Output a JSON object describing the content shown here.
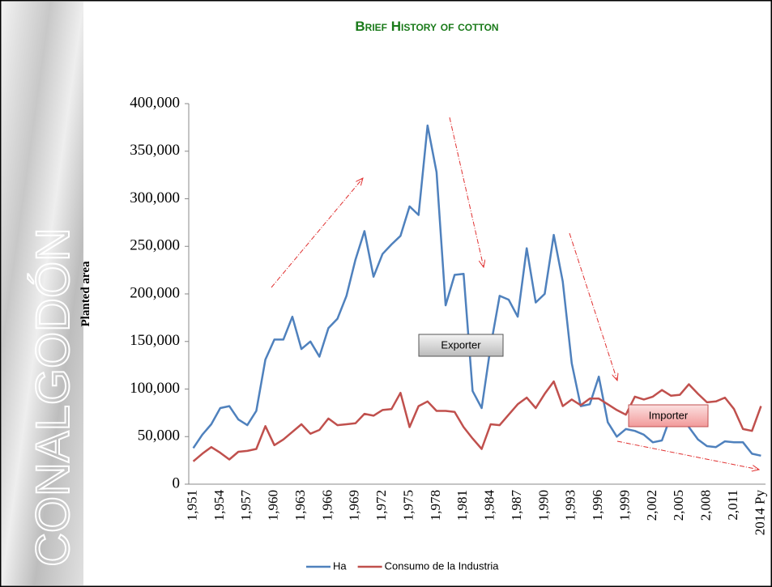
{
  "brand": "CONALGODÓN",
  "chart_data": {
    "type": "line",
    "title": "Brief History of cotton",
    "y_axis_label": "Planted area",
    "categories": [
      "1,951",
      null,
      null,
      "1,954",
      null,
      null,
      "1,957",
      null,
      null,
      "1,960",
      null,
      null,
      "1,963",
      null,
      null,
      "1,966",
      null,
      null,
      "1,969",
      null,
      null,
      "1,972",
      null,
      null,
      "1,975",
      null,
      null,
      "1,978",
      null,
      null,
      "1,981",
      null,
      null,
      "1,984",
      null,
      null,
      "1,987",
      null,
      null,
      "1,990",
      null,
      null,
      "1,993",
      null,
      null,
      "1,996",
      null,
      null,
      "1,999",
      null,
      null,
      "2,002",
      null,
      null,
      "2,005",
      null,
      null,
      "2,008",
      null,
      null,
      "2,011",
      null,
      null,
      "2014 Py"
    ],
    "series": [
      {
        "name": "Ha",
        "color": "#4f81bd",
        "values": [
          38000,
          52000,
          63000,
          80000,
          82000,
          68000,
          62000,
          77000,
          131000,
          152000,
          152000,
          176000,
          142000,
          150000,
          134000,
          164000,
          174000,
          198000,
          236000,
          266000,
          218000,
          242000,
          252000,
          261000,
          292000,
          283000,
          377000,
          328000,
          188000,
          220000,
          221000,
          98000,
          80000,
          145000,
          198000,
          194000,
          176000,
          248000,
          191000,
          200000,
          262000,
          213000,
          127000,
          82000,
          84000,
          113000,
          65000,
          50000,
          58000,
          56000,
          52000,
          44000,
          46000,
          72000,
          78000,
          60000,
          47000,
          40000,
          39000,
          45000,
          44000,
          44000,
          32000,
          30000
        ]
      },
      {
        "name": "Consumo de la Industria",
        "color": "#c0504d",
        "values": [
          24000,
          32000,
          39000,
          33000,
          26000,
          34000,
          35000,
          37000,
          61000,
          41000,
          47000,
          55000,
          63000,
          53000,
          57000,
          69000,
          62000,
          63000,
          64000,
          74000,
          72000,
          78000,
          79000,
          96000,
          60000,
          82000,
          87000,
          77000,
          77000,
          76000,
          60000,
          48000,
          37000,
          63000,
          62000,
          73000,
          84000,
          91000,
          80000,
          95000,
          108000,
          82000,
          89000,
          83000,
          90000,
          90000,
          84000,
          78000,
          73000,
          92000,
          89000,
          92000,
          99000,
          93000,
          94000,
          105000,
          95000,
          86000,
          87000,
          91000,
          79000,
          58000,
          56000,
          82000
        ]
      }
    ],
    "ylim": [
      0,
      400000
    ],
    "yticks": [
      0,
      {
        "value": 50000,
        "label": "50,000"
      },
      {
        "value": 100000,
        "label": "100,000"
      },
      {
        "value": 150000,
        "label": "150,000"
      },
      {
        "value": 200000,
        "label": "200,000"
      },
      {
        "value": 250000,
        "label": "250,000"
      },
      {
        "value": 300000,
        "label": "300,000"
      },
      {
        "value": 350000,
        "label": "350,000"
      },
      {
        "value": 400000,
        "label": "400,000"
      }
    ],
    "annotations": [
      "Exporter",
      "Importer"
    ],
    "legend": "bottom"
  }
}
